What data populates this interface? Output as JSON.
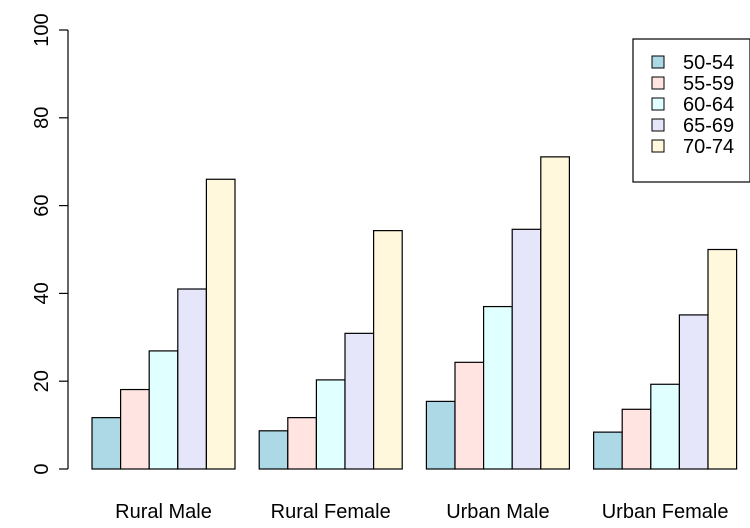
{
  "chart_data": {
    "type": "bar",
    "categories": [
      "Rural Male",
      "Rural Female",
      "Urban Male",
      "Urban Female"
    ],
    "series": [
      {
        "name": "50-54",
        "color": "#add8e6",
        "values": [
          11.7,
          8.7,
          15.4,
          8.4
        ]
      },
      {
        "name": "55-59",
        "color": "#ffe4e1",
        "values": [
          18.1,
          11.7,
          24.3,
          13.6
        ]
      },
      {
        "name": "60-64",
        "color": "#e0ffff",
        "values": [
          26.9,
          20.3,
          37.0,
          19.3
        ]
      },
      {
        "name": "65-69",
        "color": "#e6e6fa",
        "values": [
          41.0,
          30.9,
          54.6,
          35.1
        ]
      },
      {
        "name": "70-74",
        "color": "#fff8dc",
        "values": [
          66.0,
          54.3,
          71.1,
          50.0
        ]
      }
    ],
    "ylim": [
      0,
      100
    ],
    "yticks": [
      "0",
      "20",
      "40",
      "60",
      "80",
      "100"
    ],
    "legend": "top-right",
    "grid": false
  }
}
